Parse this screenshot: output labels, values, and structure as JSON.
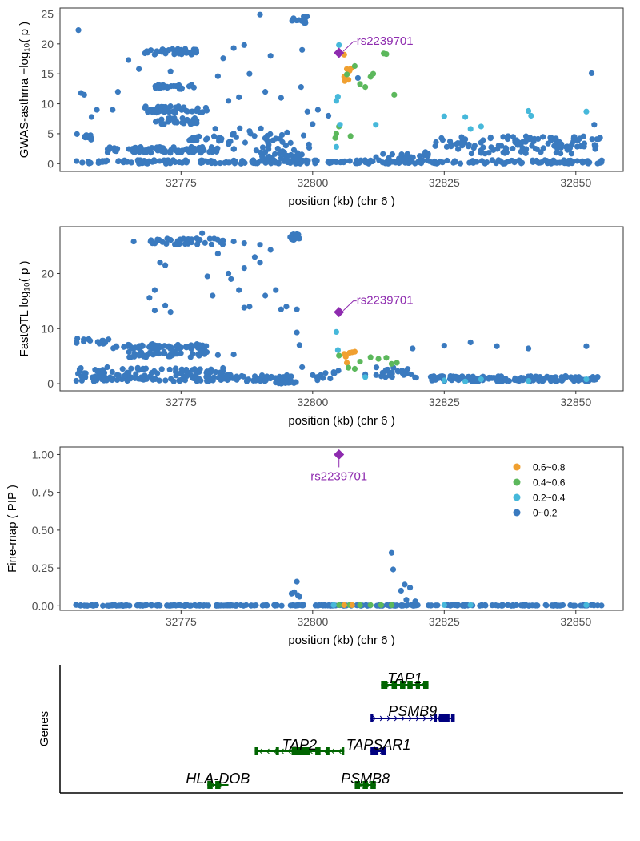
{
  "chart_data": [
    {
      "type": "scatter",
      "id": "gwas",
      "ylabel": "GWAS-asthma −log₁₀( p )",
      "xlabel": "position (kb) (chr 6 )",
      "xlim": [
        32752,
        32859
      ],
      "ylim": [
        -1.3,
        26
      ],
      "x_ticks": [
        32775,
        32800,
        32825,
        32850
      ],
      "y_ticks": [
        0,
        5,
        10,
        15,
        20,
        25
      ],
      "grid": false,
      "lead_snp": {
        "label": "rs2239701",
        "x": 32805,
        "y": 18.5
      },
      "series": [
        {
          "name": "0.6~0.8",
          "color": "#F0A030",
          "points": [
            [
              32806,
              18.2
            ],
            [
              32806.5,
              15.8
            ],
            [
              32807,
              15.5
            ],
            [
              32806,
              14.5
            ],
            [
              32806.3,
              14.1
            ],
            [
              32806.8,
              14.0
            ],
            [
              32807.3,
              15.9
            ],
            [
              32806.1,
              13.8
            ]
          ]
        },
        {
          "name": "0.4~0.6",
          "color": "#5CB85C",
          "points": [
            [
              32805,
              6.2
            ],
            [
              32804.5,
              5.0
            ],
            [
              32804.3,
              4.3
            ],
            [
              32807.2,
              4.6
            ],
            [
              32808,
              16.3
            ],
            [
              32809,
              13.3
            ],
            [
              32810,
              12.8
            ],
            [
              32811,
              14.5
            ],
            [
              32811.5,
              15.0
            ],
            [
              32813.5,
              18.4
            ],
            [
              32814,
              18.3
            ],
            [
              32815.5,
              11.5
            ],
            [
              32806.5,
              14.9
            ]
          ]
        },
        {
          "name": "0.2~0.4",
          "color": "#46B8DA",
          "points": [
            [
              32805,
              19.8
            ],
            [
              32804.5,
              10.5
            ],
            [
              32804.8,
              11.2
            ],
            [
              32805.2,
              6.5
            ],
            [
              32804.5,
              2.8
            ],
            [
              32812,
              6.5
            ],
            [
              32825,
              7.9
            ],
            [
              32829,
              7.8
            ],
            [
              32830,
              5.8
            ],
            [
              32832,
              6.2
            ],
            [
              32841,
              8.8
            ],
            [
              32841.5,
              8.0
            ],
            [
              32852,
              8.7
            ]
          ]
        }
      ]
    },
    {
      "type": "scatter",
      "id": "eqtl",
      "ylabel": "FastQTL log₁₀( p )",
      "xlabel": "position (kb) (chr 6 )",
      "xlim": [
        32752,
        32859
      ],
      "ylim": [
        -1.3,
        28.5
      ],
      "x_ticks": [
        32775,
        32800,
        32825,
        32850
      ],
      "y_ticks": [
        0,
        10,
        20
      ],
      "grid": false,
      "lead_snp": {
        "label": "rs2239701",
        "x": 32805,
        "y": 13
      },
      "series": [
        {
          "name": "0.6~0.8",
          "color": "#F0A030",
          "points": [
            [
              32806,
              5.4
            ],
            [
              32807,
              5.6
            ],
            [
              32807.5,
              5.7
            ],
            [
              32806.3,
              4.9
            ],
            [
              32806.5,
              3.8
            ],
            [
              32808,
              5.8
            ]
          ]
        },
        {
          "name": "0.4~0.6",
          "color": "#5CB85C",
          "points": [
            [
              32805,
              5.1
            ],
            [
              32806.8,
              2.9
            ],
            [
              32808,
              2.7
            ],
            [
              32809,
              4.0
            ],
            [
              32811,
              4.8
            ],
            [
              32812.5,
              4.5
            ],
            [
              32814,
              4.7
            ],
            [
              32815,
              3.6
            ],
            [
              32816,
              3.8
            ]
          ]
        },
        {
          "name": "0.2~0.4",
          "color": "#46B8DA",
          "points": [
            [
              32804.5,
              9.4
            ],
            [
              32804.8,
              6.1
            ],
            [
              32810,
              1.2
            ],
            [
              32825,
              0.6
            ],
            [
              32829,
              0.4
            ],
            [
              32832,
              0.8
            ],
            [
              32841,
              0.5
            ],
            [
              32852,
              0.8
            ]
          ]
        }
      ]
    },
    {
      "type": "scatter",
      "id": "finemap",
      "ylabel": "Fine-map ( PIP )",
      "xlabel": "position (kb) (chr 6 )",
      "xlim": [
        32752,
        32859
      ],
      "ylim": [
        -0.03,
        1.05
      ],
      "x_ticks": [
        32775,
        32800,
        32825,
        32850
      ],
      "y_ticks": [
        0.0,
        0.25,
        0.5,
        0.75,
        1.0
      ],
      "y_tick_labels": [
        "0.00",
        "0.25",
        "0.50",
        "0.75",
        "1.00"
      ],
      "grid": false,
      "legend_position": "top-right",
      "legend": [
        {
          "label": "0.6~0.8",
          "color": "#F0A030"
        },
        {
          "label": "0.4~0.6",
          "color": "#5CB85C"
        },
        {
          "label": "0.2~0.4",
          "color": "#46B8DA"
        },
        {
          "label": "0~0.2",
          "color": "#3A7ABF"
        }
      ],
      "lead_snp": {
        "label": "rs2239701",
        "x": 32805,
        "y": 1.0
      },
      "series": [
        {
          "name": "0~0.2",
          "color": "#3A7ABF",
          "points": [
            [
              32797,
              0.16
            ],
            [
              32796.5,
              0.09
            ],
            [
              32797.2,
              0.07
            ],
            [
              32796,
              0.08
            ],
            [
              32797.5,
              0.06
            ],
            [
              32815,
              0.35
            ],
            [
              32815.3,
              0.24
            ],
            [
              32817.5,
              0.14
            ],
            [
              32818.5,
              0.12
            ],
            [
              32816.8,
              0.1
            ],
            [
              32817.8,
              0.04
            ],
            [
              32819.5,
              0.03
            ]
          ]
        },
        {
          "name": "0.4~0.6",
          "color": "#5CB85C",
          "points": [
            [
              32805,
              0.005
            ],
            [
              32807,
              0.005
            ],
            [
              32809,
              0.005
            ],
            [
              32811,
              0.005
            ],
            [
              32813,
              0.005
            ],
            [
              32815,
              0.005
            ]
          ]
        },
        {
          "name": "0.6~0.8",
          "color": "#F0A030",
          "points": [
            [
              32806,
              0.005
            ],
            [
              32807.5,
              0.005
            ]
          ]
        },
        {
          "name": "0.2~0.4",
          "color": "#46B8DA",
          "points": [
            [
              32804,
              0.005
            ],
            [
              32825,
              0.005
            ],
            [
              32830,
              0.005
            ],
            [
              32852,
              0.005
            ]
          ]
        }
      ]
    },
    {
      "type": "gene_track",
      "id": "genes",
      "ylabel": "Genes",
      "xlim": [
        32752,
        32859
      ],
      "genes": [
        {
          "name": "TAP1",
          "start": 32813,
          "end": 32822,
          "strand": "-",
          "color": "#006400",
          "row": 1,
          "exons": [
            [
              32813,
              32814.2
            ],
            [
              32815,
              32816
            ],
            [
              32816.6,
              32817.6
            ],
            [
              32818,
              32819
            ],
            [
              32819.6,
              32820.4
            ],
            [
              32821,
              32822
            ]
          ]
        },
        {
          "name": "PSMB9",
          "start": 32811,
          "end": 32827,
          "strand": "+",
          "color": "#000080",
          "row": 2,
          "exons": [
            [
              32811,
              32811.5
            ],
            [
              32823,
              32823.6
            ],
            [
              32824,
              32826
            ],
            [
              32826.3,
              32827
            ]
          ]
        },
        {
          "name": "TAP2",
          "start": 32789,
          "end": 32806,
          "strand": "-",
          "color": "#006400",
          "row": 3,
          "exons": [
            [
              32789,
              32789.6
            ],
            [
              32793,
              32793.6
            ],
            [
              32796,
              32799.5
            ],
            [
              32800.5,
              32801.5
            ],
            [
              32802.5,
              32803.2
            ],
            [
              32805.5,
              32806
            ]
          ]
        },
        {
          "name": "TAPSAR1",
          "start": 32811,
          "end": 32814,
          "strand": "+",
          "color": "#000080",
          "row": 3,
          "exons": [
            [
              32811,
              32812.5
            ],
            [
              32813,
              32814
            ]
          ]
        },
        {
          "name": "HLA-DOB",
          "start": 32780,
          "end": 32784,
          "strand": "-",
          "color": "#006400",
          "row": 4,
          "exons": [
            [
              32780,
              32781
            ],
            [
              32781.5,
              32782.5
            ]
          ]
        },
        {
          "name": "PSMB8",
          "start": 32808,
          "end": 32812,
          "strand": "-",
          "color": "#006400",
          "row": 4,
          "exons": [
            [
              32808,
              32809
            ],
            [
              32809.5,
              32810.5
            ],
            [
              32811,
              32812
            ]
          ]
        }
      ]
    }
  ]
}
